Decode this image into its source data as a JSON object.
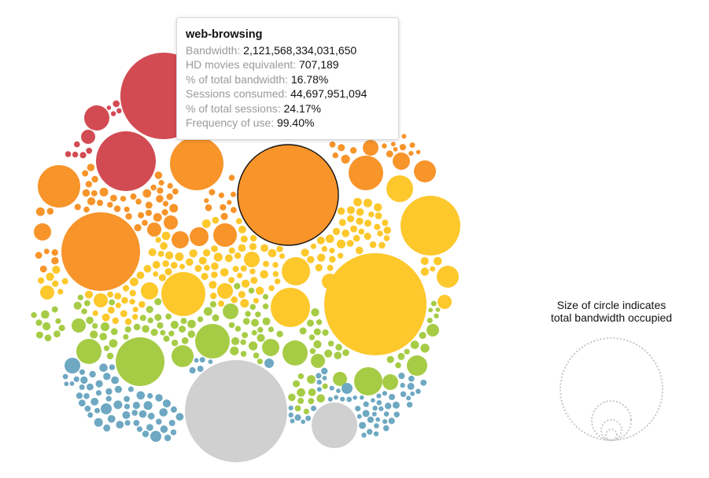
{
  "tooltip": {
    "title": "web-browsing",
    "rows": [
      {
        "label": "Bandwidth: ",
        "value": "2,121,568,334,031,650"
      },
      {
        "label": "HD movies equivalent: ",
        "value": "707,189"
      },
      {
        "label": "% of total bandwidth: ",
        "value": "16.78%"
      },
      {
        "label": "Sessions consumed: ",
        "value": "44,697,951,094"
      },
      {
        "label": "% of total sessions: ",
        "value": "24.17%"
      },
      {
        "label": "Frequency of use: ",
        "value": "99.40%"
      }
    ]
  },
  "legend": {
    "line1": "Size of circle indicates",
    "line2": "total bandwidth occupied",
    "ring_color": "#c8c8c8"
  },
  "palette": {
    "red": "#d24b53",
    "orange": "#f7942a",
    "yellow": "#fdc82c",
    "green": "#a6cc46",
    "blue": "#6ea8c2",
    "gray": "#d0d0d0"
  },
  "chart_data": {
    "type": "bubble",
    "highlighted": "web-browsing",
    "size_encodes": "total bandwidth occupied"
  }
}
